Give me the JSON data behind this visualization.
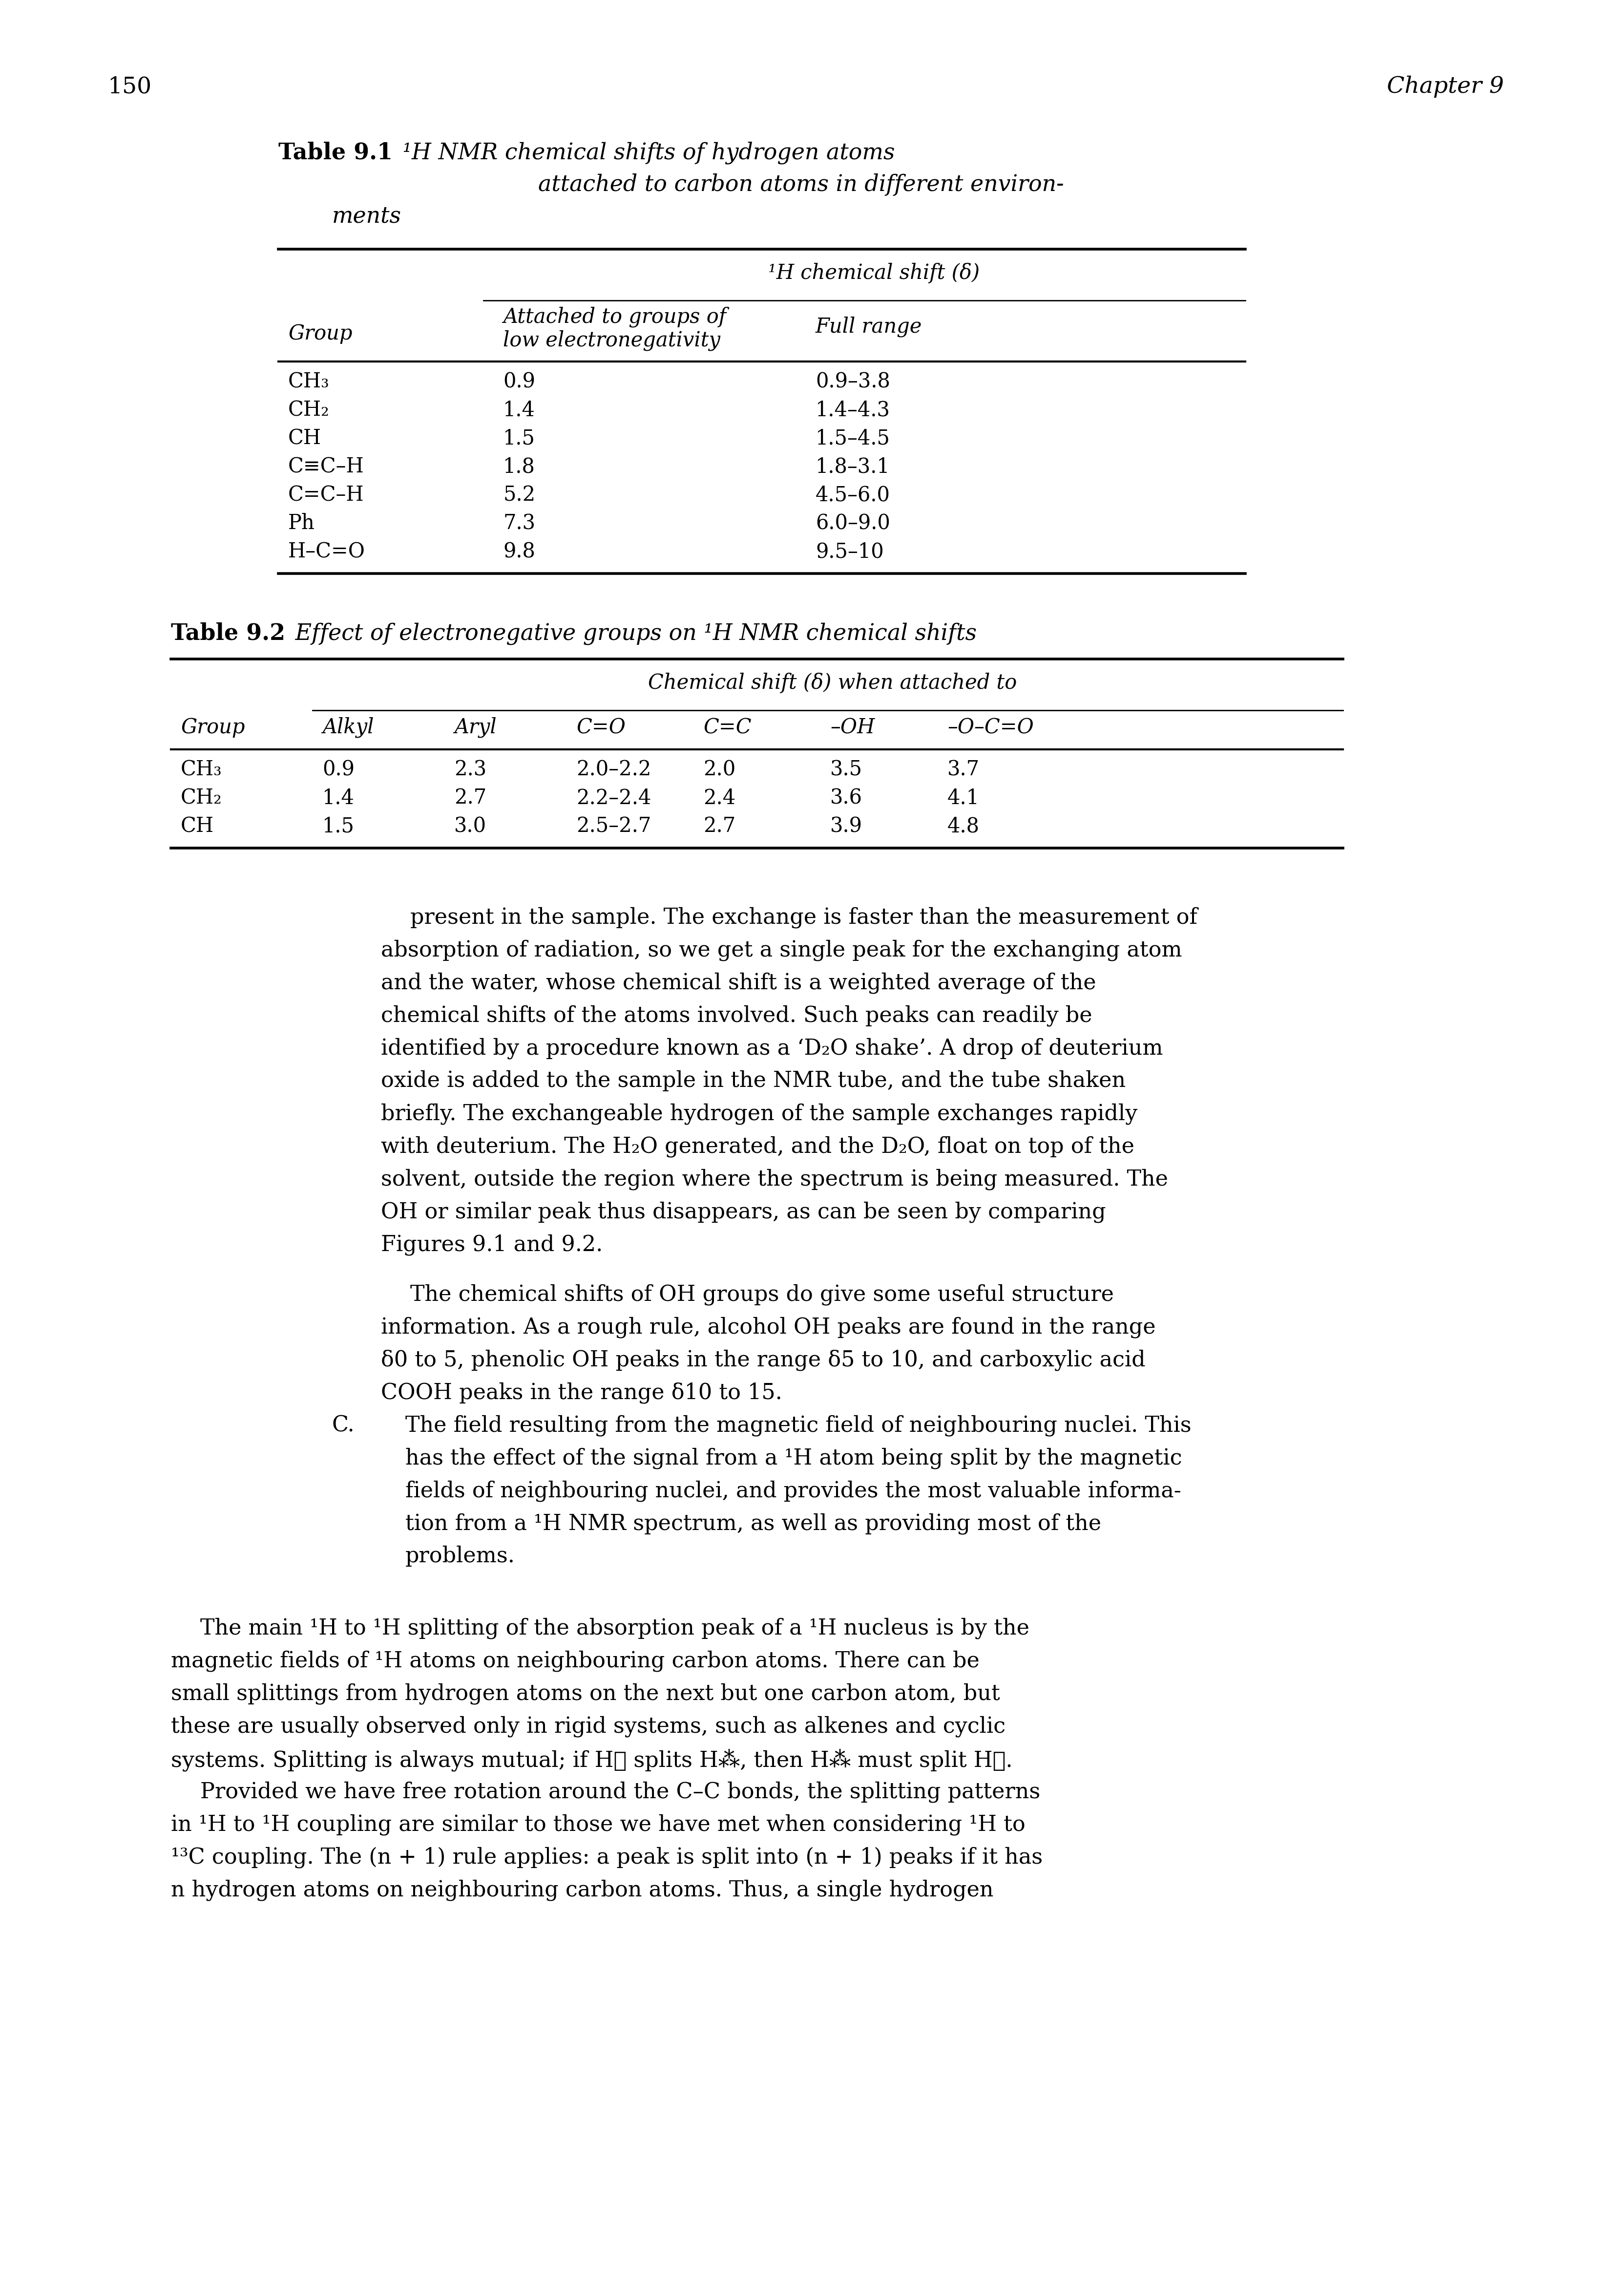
{
  "page_number": "150",
  "chapter": "Chapter 9",
  "background_color": "#ffffff",
  "text_color": "#000000",
  "table1": {
    "title_bold": "Table 9.1",
    "title_italic": " ¹H NMR chemical shifts of hydrogen atoms",
    "title_line2": "attached to carbon atoms in different environ-",
    "title_line3": "ments",
    "header_span": "¹H chemical shift (δ)",
    "subheader1_line1": "Attached to groups of",
    "subheader1_line2": "low electronegativity",
    "subheader2": "Full range",
    "col1_header": "Group",
    "rows": [
      [
        "CH₃",
        "0.9",
        "0.9–3.8"
      ],
      [
        "CH₂",
        "1.4",
        "1.4–4.3"
      ],
      [
        "CH",
        "1.5",
        "1.5–4.5"
      ],
      [
        "C≡C–H",
        "1.8",
        "1.8–3.1"
      ],
      [
        "C=C–H",
        "5.2",
        "4.5–6.0"
      ],
      [
        "Ph",
        "7.3",
        "6.0–9.0"
      ],
      [
        "H–C=O",
        "9.8",
        "9.5–10"
      ]
    ]
  },
  "table2": {
    "title_bold": "Table 9.2",
    "title_italic": " Effect of electronegative groups on ¹H NMR chemical shifts",
    "header_span": "Chemical shift (δ) when attached to",
    "col_headers": [
      "Group",
      "Alkyl",
      "Aryl",
      "C=O",
      "C=C",
      "–OH",
      "–O–C=O"
    ],
    "rows": [
      [
        "CH₃",
        "0.9",
        "2.3",
        "2.0–2.2",
        "2.0",
        "3.5",
        "3.7"
      ],
      [
        "CH₂",
        "1.4",
        "2.7",
        "2.2–2.4",
        "2.4",
        "3.6",
        "4.1"
      ],
      [
        "CH",
        "1.5",
        "3.0",
        "2.5–2.7",
        "2.7",
        "3.9",
        "4.8"
      ]
    ]
  },
  "para1_lines": [
    "present in the sample. The exchange is faster than the measurement of",
    "absorption of radiation, so we get a single peak for the exchanging atom",
    "and the water, whose chemical shift is a weighted average of the",
    "chemical shifts of the atoms involved. Such peaks can readily be",
    "identified by a procedure known as a ‘D₂O shake’. A drop of deuterium",
    "oxide is added to the sample in the NMR tube, and the tube shaken",
    "briefly. The exchangeable hydrogen of the sample exchanges rapidly",
    "with deuterium. The H₂O generated, and the D₂O, float on top of the",
    "solvent, outside the region where the spectrum is being measured. The",
    "OH or similar peak thus disappears, as can be seen by comparing",
    "Figures 9.1 and 9.2."
  ],
  "para2_lines": [
    "The chemical shifts of OH groups do give some useful structure",
    "information. As a rough rule, alcohol OH peaks are found in the range",
    "δ0 to 5, phenolic OH peaks in the range δ5 to 10, and carboxylic acid",
    "COOH peaks in the range δ10 to 15."
  ],
  "para3_lines": [
    "The field resulting from the magnetic field of neighbouring nuclei. This",
    "has the effect of the signal from a ¹H atom being split by the magnetic",
    "fields of neighbouring nuclei, and provides the most valuable informa-",
    "tion from a ¹H NMR spectrum, as well as providing most of the",
    "problems."
  ],
  "para4_lines": [
    "The main ¹H to ¹H splitting of the absorption peak of a ¹H nucleus is by the",
    "magnetic fields of ¹H atoms on neighbouring carbon atoms. There can be",
    "small splittings from hydrogen atoms on the next but one carbon atom, but",
    "these are usually observed only in rigid systems, such as alkenes and cyclic",
    "systems. Splitting is always mutual; if H⁁ splits H⁂, then H⁂ must split H⁁."
  ],
  "para5_lines": [
    "Provided we have free rotation around the C–C bonds, the splitting patterns",
    "in ¹H to ¹H coupling are similar to those we have met when considering ¹H to",
    "¹³C coupling. The (n + 1) rule applies: a peak is split into (n + 1) peaks if it has",
    "n hydrogen atoms on neighbouring carbon atoms. Thus, a single hydrogen"
  ]
}
